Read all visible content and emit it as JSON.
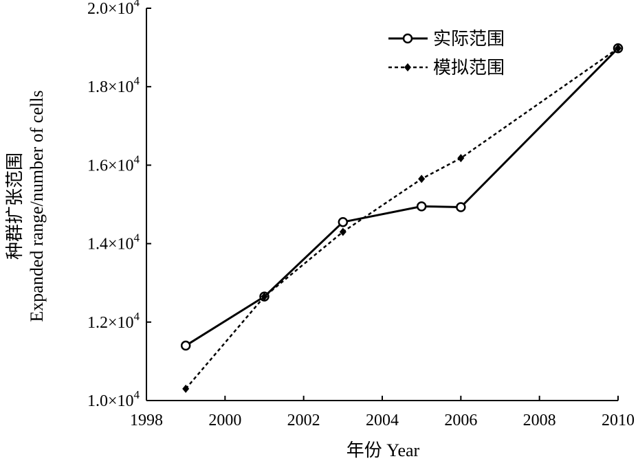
{
  "chart_data": {
    "type": "line",
    "x_ticks": [
      "1998",
      "2000",
      "2002",
      "2004",
      "2006",
      "2008",
      "2010"
    ],
    "y_ticks": [
      {
        "value": 10000,
        "mantissa": "1.0",
        "times": "×10",
        "exp": "4"
      },
      {
        "value": 12000,
        "mantissa": "1.2",
        "times": "×10",
        "exp": "4"
      },
      {
        "value": 14000,
        "mantissa": "1.4",
        "times": "×10",
        "exp": "4"
      },
      {
        "value": 16000,
        "mantissa": "1.6",
        "times": "×10",
        "exp": "4"
      },
      {
        "value": 18000,
        "mantissa": "1.8",
        "times": "×10",
        "exp": "4"
      },
      {
        "value": 20000,
        "mantissa": "2.0",
        "times": "×10",
        "exp": "4"
      }
    ],
    "xlabel": "年份 Year",
    "ylabel_cn": "种群扩张范围",
    "ylabel_en": "Expanded range/number of cells",
    "xlim": [
      1998,
      2010
    ],
    "ylim": [
      10000,
      20000
    ],
    "grid": false,
    "legend_position": "top-right",
    "series": [
      {
        "name": "实际范围",
        "style": "solid",
        "marker": "open-circle",
        "color": "#000000",
        "points": [
          {
            "x": 1999,
            "y": 11400
          },
          {
            "x": 2001,
            "y": 12650
          },
          {
            "x": 2003,
            "y": 14550
          },
          {
            "x": 2005,
            "y": 14950
          },
          {
            "x": 2006,
            "y": 14930
          },
          {
            "x": 2010,
            "y": 18980
          }
        ]
      },
      {
        "name": "模拟范围",
        "style": "dotted",
        "marker": "filled-diamond",
        "color": "#000000",
        "points": [
          {
            "x": 1999,
            "y": 10300
          },
          {
            "x": 2001,
            "y": 12650
          },
          {
            "x": 2003,
            "y": 14300
          },
          {
            "x": 2005,
            "y": 15650
          },
          {
            "x": 2006,
            "y": 16180
          },
          {
            "x": 2010,
            "y": 18980
          }
        ]
      }
    ]
  }
}
